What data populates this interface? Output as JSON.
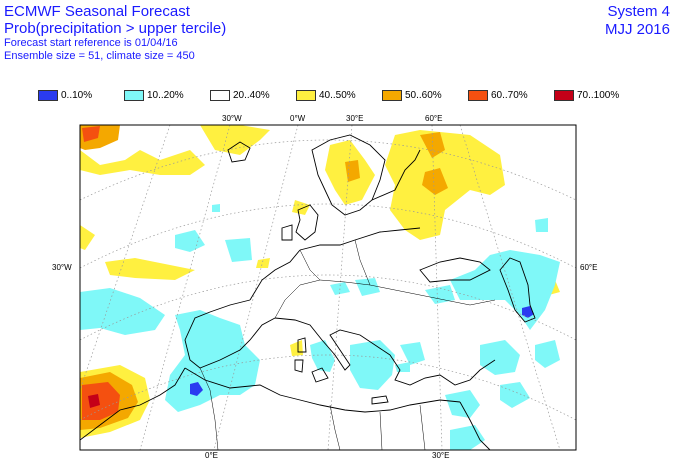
{
  "header": {
    "title": "ECMWF Seasonal Forecast",
    "subtitle": "Prob(precipitation > upper tercile)",
    "forecast_ref": "Forecast start reference is 01/04/16",
    "ensemble": "Ensemble size = 51, climate size = 450",
    "system": "System 4",
    "period": "MJJ 2016"
  },
  "legend": [
    {
      "label": "0..10%",
      "color": "#2a3bf0"
    },
    {
      "label": "10..20%",
      "color": "#7ff8f8"
    },
    {
      "label": "20..40%",
      "color": "#ffffff"
    },
    {
      "label": "40..50%",
      "color": "#fff040"
    },
    {
      "label": "50..60%",
      "color": "#f4a800"
    },
    {
      "label": "60..70%",
      "color": "#f45010"
    },
    {
      "label": "70..100%",
      "color": "#c40018"
    }
  ],
  "axes": {
    "top": [
      "30°W",
      "0°W",
      "30°E",
      "60°E"
    ],
    "bottom": [
      "0°E",
      "30°E"
    ],
    "left": "30°W",
    "right": "60°E"
  },
  "colors": {
    "cyan": "#7ff8f8",
    "yellow": "#fff040",
    "orange": "#f4a800",
    "red": "#f45010",
    "darkred": "#c40018",
    "blue": "#2a3bf0"
  }
}
